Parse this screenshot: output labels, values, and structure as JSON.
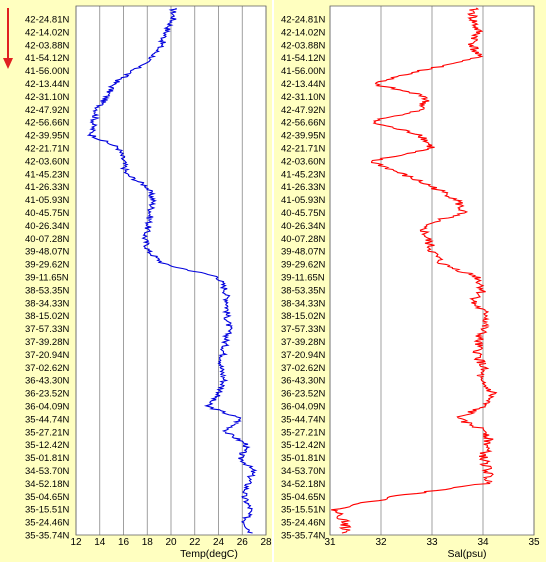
{
  "colors": {
    "background": "#ffffc0",
    "plot_bg": "#ffffff",
    "temp_line": "#0000dd",
    "sal_line": "#ff0000",
    "gridline": "#888888",
    "arrow": "#e02020"
  },
  "direction_arrow_icon": "arrow-down-icon",
  "chart_data": [
    {
      "type": "line",
      "orientation": "vertical-profile",
      "xlabel": "Temp(degC)",
      "ylabel": "",
      "xlim": [
        12,
        28
      ],
      "xticks": [
        "12",
        "14",
        "16",
        "18",
        "20",
        "22",
        "24",
        "26",
        "28"
      ],
      "grid": true,
      "latitudes": [
        "42-24.81N",
        "42-14.02N",
        "42-03.88N",
        "41-54.12N",
        "41-56.00N",
        "42-13.44N",
        "42-31.10N",
        "42-47.92N",
        "42-56.66N",
        "42-39.95N",
        "42-21.71N",
        "42-03.60N",
        "41-45.23N",
        "41-26.33N",
        "41-05.93N",
        "40-45.75N",
        "40-26.34N",
        "40-07.28N",
        "39-48.07N",
        "39-29.62N",
        "39-11.65N",
        "38-53.35N",
        "38-34.33N",
        "38-15.02N",
        "37-57.33N",
        "37-39.28N",
        "37-20.94N",
        "37-02.62N",
        "36-43.30N",
        "36-23.52N",
        "36-04.09N",
        "35-44.74N",
        "35-27.21N",
        "35-12.42N",
        "35-01.81N",
        "34-53.70N",
        "34-52.18N",
        "35-04.65N",
        "35-15.51N",
        "35-24.46N",
        "35-35.74N"
      ],
      "series": [
        {
          "values": [
            20.2,
            19.6,
            19.2,
            18.4,
            16.8,
            15.2,
            14.6,
            13.8,
            13.5,
            13.3,
            15.6,
            16.0,
            16.2,
            18.0,
            18.5,
            18.3,
            18.1,
            17.8,
            18.1,
            19.4,
            24.0,
            24.6,
            24.8,
            24.7,
            24.9,
            24.6,
            24.4,
            24.2,
            24.5,
            24.1,
            23.0,
            25.9,
            24.6,
            26.4,
            25.8,
            26.9,
            26.5,
            26.1,
            26.7,
            26.2,
            26.9
          ]
        }
      ]
    },
    {
      "type": "line",
      "orientation": "vertical-profile",
      "xlabel": "Sal(psu)",
      "ylabel": "",
      "xlim": [
        31,
        35
      ],
      "xticks": [
        "31",
        "32",
        "33",
        "34",
        "35"
      ],
      "grid": true,
      "latitudes": [
        "42-24.81N",
        "42-14.02N",
        "42-03.88N",
        "41-54.12N",
        "41-56.00N",
        "42-13.44N",
        "42-31.10N",
        "42-47.92N",
        "42-56.66N",
        "42-39.95N",
        "42-21.71N",
        "42-03.60N",
        "41-45.23N",
        "41-26.33N",
        "41-05.93N",
        "40-45.75N",
        "40-26.34N",
        "40-07.28N",
        "39-48.07N",
        "39-29.62N",
        "39-11.65N",
        "38-53.35N",
        "38-34.33N",
        "38-15.02N",
        "37-57.33N",
        "37-39.28N",
        "37-20.94N",
        "37-02.62N",
        "36-43.30N",
        "36-23.52N",
        "36-04.09N",
        "35-44.74N",
        "35-27.21N",
        "35-12.42N",
        "35-01.81N",
        "34-53.70N",
        "34-52.18N",
        "35-04.65N",
        "35-15.51N",
        "35-24.46N",
        "35-35.74N"
      ],
      "series": [
        {
          "values": [
            33.8,
            33.9,
            33.8,
            33.9,
            32.8,
            31.8,
            32.9,
            32.8,
            31.8,
            32.8,
            33.0,
            31.8,
            32.4,
            33.0,
            33.5,
            33.6,
            32.8,
            32.9,
            33.0,
            33.2,
            33.9,
            34.0,
            33.8,
            34.1,
            34.0,
            33.9,
            33.9,
            34.0,
            33.9,
            34.2,
            34.0,
            33.5,
            34.1,
            34.1,
            34.0,
            34.1,
            34.1,
            32.3,
            31.1,
            31.3,
            31.3
          ]
        }
      ]
    }
  ]
}
